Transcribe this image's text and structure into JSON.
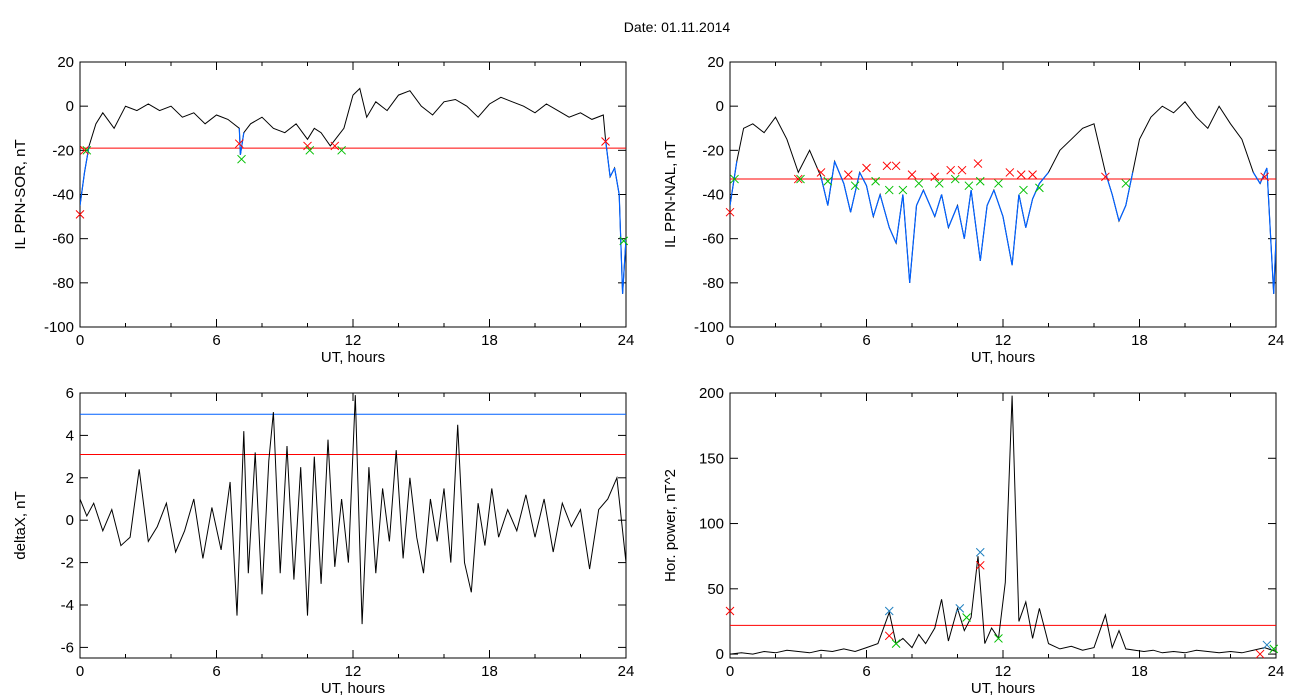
{
  "page_title": "Date:  01.11.2014",
  "colors": {
    "trace": "#000000",
    "threshold": "#ff0000",
    "alt_threshold": "#0060ff",
    "disturbed": "#0060ff",
    "marker_red": "#ff0000",
    "marker_green": "#00c000",
    "marker_blue": "#2080c0"
  },
  "chart_data": [
    {
      "type": "line",
      "title": "",
      "xlabel": "UT, hours",
      "ylabel": "IL PPN-SOR, nT",
      "xlim": [
        0,
        24
      ],
      "ylim": [
        -100,
        20
      ],
      "xticks": [
        "0",
        "6",
        "12",
        "18",
        "24"
      ],
      "yticks": [
        "-100",
        "-80",
        "-60",
        "-40",
        "-20",
        "0",
        "20"
      ],
      "x": [
        0,
        0.2,
        0.4,
        0.7,
        1.0,
        1.5,
        2.0,
        2.5,
        3.0,
        3.5,
        4.0,
        4.5,
        5.0,
        5.5,
        6.0,
        6.5,
        7.0,
        7.05,
        7.2,
        7.5,
        8.0,
        8.5,
        9.0,
        9.5,
        10.0,
        10.3,
        10.6,
        11.0,
        11.3,
        11.6,
        12.0,
        12.3,
        12.6,
        13.0,
        13.5,
        14.0,
        14.5,
        15.0,
        15.5,
        16.0,
        16.5,
        17.0,
        17.5,
        18.0,
        18.5,
        19.0,
        19.5,
        20.0,
        20.5,
        21.0,
        21.5,
        22.0,
        22.5,
        23.0,
        23.1,
        23.3,
        23.5,
        23.7,
        23.85,
        24.0
      ],
      "y": [
        -45,
        -30,
        -18,
        -8,
        -3,
        -10,
        0,
        -2,
        1,
        -2,
        0,
        -5,
        -3,
        -8,
        -4,
        -6,
        -10,
        -22,
        -12,
        -8,
        -5,
        -10,
        -12,
        -8,
        -15,
        -10,
        -12,
        -18,
        -14,
        -10,
        5,
        8,
        -5,
        2,
        -2,
        5,
        7,
        0,
        -4,
        2,
        3,
        0,
        -5,
        1,
        4,
        2,
        0,
        -3,
        1,
        -2,
        -5,
        -3,
        -6,
        -4,
        -15,
        -32,
        -28,
        -40,
        -85,
        -60
      ],
      "series": [
        {
          "name": "threshold",
          "y_const": -19
        },
        {
          "name": "onsets",
          "x": [
            0.0,
            0.2,
            7.0,
            10.0,
            11.2,
            23.1
          ],
          "y": [
            -49,
            -20,
            -17,
            -18,
            -18,
            -16
          ]
        },
        {
          "name": "ends",
          "x": [
            0.3,
            7.1,
            10.1,
            11.5,
            23.9
          ],
          "y": [
            -20,
            -24,
            -20,
            -20,
            -61
          ]
        }
      ]
    },
    {
      "type": "line",
      "title": "",
      "xlabel": "UT, hours",
      "ylabel": "IL PPN-NAL, nT",
      "xlim": [
        0,
        24
      ],
      "ylim": [
        -100,
        20
      ],
      "xticks": [
        "0",
        "6",
        "12",
        "18",
        "24"
      ],
      "yticks": [
        "-100",
        "-80",
        "-60",
        "-40",
        "-20",
        "0",
        "20"
      ],
      "x": [
        0,
        0.3,
        0.6,
        1.0,
        1.5,
        2.0,
        2.5,
        3.0,
        3.5,
        4.0,
        4.3,
        4.6,
        5.0,
        5.3,
        5.7,
        6.0,
        6.3,
        6.6,
        7.0,
        7.3,
        7.6,
        7.9,
        8.2,
        8.5,
        9.0,
        9.3,
        9.6,
        10.0,
        10.3,
        10.6,
        11.0,
        11.3,
        11.6,
        12.0,
        12.4,
        12.7,
        13.0,
        13.3,
        13.6,
        14.0,
        14.5,
        15.0,
        15.5,
        16.0,
        16.5,
        16.8,
        17.1,
        17.4,
        17.7,
        18.0,
        18.5,
        19.0,
        19.5,
        20.0,
        20.5,
        21.0,
        21.5,
        22.0,
        22.5,
        23.0,
        23.3,
        23.6,
        23.9,
        24.0
      ],
      "y": [
        -45,
        -25,
        -10,
        -8,
        -12,
        -5,
        -15,
        -30,
        -20,
        -32,
        -45,
        -25,
        -35,
        -48,
        -30,
        -36,
        -50,
        -40,
        -55,
        -62,
        -40,
        -80,
        -45,
        -38,
        -50,
        -40,
        -55,
        -45,
        -60,
        -38,
        -70,
        -45,
        -38,
        -50,
        -72,
        -40,
        -55,
        -42,
        -35,
        -30,
        -20,
        -15,
        -10,
        -8,
        -30,
        -40,
        -52,
        -45,
        -30,
        -15,
        -5,
        0,
        -3,
        2,
        -5,
        -10,
        0,
        -8,
        -15,
        -30,
        -35,
        -28,
        -85,
        -60
      ],
      "series": [
        {
          "name": "threshold",
          "y_const": -33
        },
        {
          "name": "onsets",
          "x": [
            0.0,
            3.0,
            4.0,
            5.2,
            6.0,
            6.9,
            7.3,
            8.0,
            9.0,
            9.7,
            10.2,
            10.9,
            12.3,
            12.8,
            13.3,
            16.5,
            23.5
          ],
          "y": [
            -48,
            -33,
            -30,
            -31,
            -28,
            -27,
            -27,
            -31,
            -32,
            -29,
            -29,
            -26,
            -30,
            -31,
            -31,
            -32,
            -32
          ]
        },
        {
          "name": "ends",
          "x": [
            0.2,
            3.1,
            4.3,
            5.5,
            6.4,
            7.0,
            7.6,
            8.3,
            9.2,
            9.9,
            10.5,
            11.0,
            11.8,
            12.9,
            13.6,
            17.4
          ],
          "y": [
            -33,
            -33,
            -34,
            -36,
            -34,
            -38,
            -38,
            -35,
            -35,
            -33,
            -36,
            -34,
            -35,
            -38,
            -37,
            -35
          ]
        }
      ]
    },
    {
      "type": "line",
      "title": "",
      "xlabel": "UT, hours",
      "ylabel": "deltaX, nT",
      "xlim": [
        0,
        24
      ],
      "ylim": [
        -6.5,
        6
      ],
      "xticks": [
        "0",
        "6",
        "12",
        "18",
        "24"
      ],
      "yticks": [
        "-6",
        "-4",
        "-2",
        "0",
        "2",
        "4",
        "6"
      ],
      "x": [
        0,
        0.3,
        0.6,
        1.0,
        1.4,
        1.8,
        2.2,
        2.6,
        3.0,
        3.4,
        3.8,
        4.2,
        4.6,
        5.0,
        5.4,
        5.8,
        6.2,
        6.6,
        6.9,
        7.2,
        7.4,
        7.7,
        8.0,
        8.3,
        8.5,
        8.8,
        9.1,
        9.4,
        9.7,
        10.0,
        10.3,
        10.6,
        10.9,
        11.2,
        11.5,
        11.8,
        12.1,
        12.4,
        12.7,
        13.0,
        13.3,
        13.6,
        13.9,
        14.2,
        14.5,
        14.8,
        15.1,
        15.4,
        15.7,
        16.0,
        16.3,
        16.6,
        16.9,
        17.2,
        17.5,
        17.8,
        18.1,
        18.4,
        18.8,
        19.2,
        19.6,
        20.0,
        20.4,
        20.8,
        21.2,
        21.6,
        22.0,
        22.4,
        22.8,
        23.2,
        23.6,
        24.0
      ],
      "y": [
        1,
        0.2,
        0.8,
        -0.5,
        0.5,
        -1.2,
        -0.8,
        2.4,
        -1.0,
        -0.3,
        0.8,
        -1.5,
        -0.5,
        1.0,
        -1.8,
        0.6,
        -1.4,
        1.8,
        -4.5,
        4.2,
        -2.5,
        3.2,
        -3.5,
        2.8,
        5.1,
        -2.5,
        3.5,
        -2.8,
        2.5,
        -4.5,
        3.0,
        -3.0,
        3.8,
        -2.2,
        1.0,
        -2.0,
        5.9,
        -4.9,
        2.5,
        -2.5,
        1.5,
        -1.0,
        3.3,
        -1.8,
        2.0,
        -0.8,
        -2.5,
        1.0,
        -1.0,
        1.5,
        -2.0,
        4.5,
        -2.0,
        -3.4,
        0.8,
        -1.2,
        1.5,
        -0.8,
        0.5,
        -0.5,
        1.2,
        -0.8,
        1.0,
        -1.5,
        0.8,
        -0.3,
        0.5,
        -2.3,
        0.5,
        1.0,
        2.0,
        -2.0
      ],
      "series": [
        {
          "name": "threshold",
          "y_const": 3.1
        },
        {
          "name": "upper threshold",
          "y_const": 5.0
        }
      ]
    },
    {
      "type": "line",
      "title": "",
      "xlabel": "UT, hours",
      "ylabel": "Hor. power, nT^2",
      "xlim": [
        0,
        24
      ],
      "ylim": [
        -3,
        200
      ],
      "xticks": [
        "0",
        "6",
        "12",
        "18",
        "24"
      ],
      "yticks": [
        "0",
        "50",
        "100",
        "150",
        "200"
      ],
      "x": [
        0,
        0.5,
        1.0,
        1.5,
        2.0,
        2.5,
        3.0,
        3.5,
        4.0,
        4.5,
        5.0,
        5.5,
        6.0,
        6.5,
        7.0,
        7.3,
        7.6,
        8.0,
        8.3,
        8.6,
        9.0,
        9.3,
        9.6,
        10.0,
        10.3,
        10.6,
        10.9,
        11.2,
        11.5,
        11.8,
        12.1,
        12.4,
        12.7,
        13.0,
        13.3,
        13.6,
        14.0,
        14.5,
        15.0,
        15.5,
        16.0,
        16.5,
        16.8,
        17.1,
        17.4,
        17.8,
        18.2,
        18.6,
        19.0,
        19.5,
        20.0,
        20.5,
        21.0,
        21.5,
        22.0,
        22.5,
        23.0,
        23.5,
        24.0
      ],
      "y": [
        0,
        1,
        0,
        2,
        1,
        3,
        2,
        1,
        3,
        2,
        4,
        2,
        5,
        8,
        32,
        8,
        12,
        5,
        15,
        8,
        20,
        42,
        10,
        35,
        18,
        28,
        75,
        8,
        20,
        12,
        55,
        198,
        25,
        40,
        12,
        35,
        8,
        4,
        6,
        3,
        5,
        30,
        5,
        18,
        4,
        3,
        2,
        3,
        1,
        2,
        1,
        3,
        2,
        1,
        2,
        1,
        3,
        5,
        2
      ],
      "series": [
        {
          "name": "threshold",
          "y_const": 22
        },
        {
          "name": "red markers",
          "x": [
            0.0,
            7.0,
            11.0,
            23.3
          ],
          "y": [
            33,
            14,
            68,
            0
          ]
        },
        {
          "name": "blue markers",
          "x": [
            7.0,
            10.1,
            11.0,
            23.6
          ],
          "y": [
            33,
            35,
            78,
            7
          ]
        },
        {
          "name": "green markers",
          "x": [
            7.3,
            10.4,
            11.8,
            23.9
          ],
          "y": [
            8,
            28,
            12,
            4
          ]
        }
      ]
    }
  ]
}
